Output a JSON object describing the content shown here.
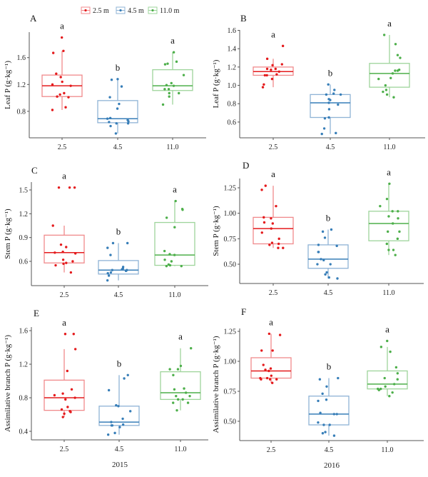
{
  "legend": {
    "items": [
      {
        "label": "2.5 m",
        "color": "#e41a1c"
      },
      {
        "label": "4.5 m",
        "color": "#377eb8"
      },
      {
        "label": "11.0 m",
        "color": "#4daf4a"
      }
    ]
  },
  "years": [
    "2015",
    "2016"
  ],
  "chart_data": [
    {
      "type": "box",
      "panel": "A",
      "ylabel": "Leaf P  (g·kg⁻¹)",
      "categories": [
        "2.5",
        "4.5",
        "11.0"
      ],
      "ylim": [
        0.405,
        1.98
      ],
      "yticks": [
        0.8,
        1.2,
        1.6
      ],
      "tick_format": 1,
      "groups": [
        {
          "letter": "a",
          "whisker": [
            0.82,
            1.7
          ],
          "q1": 1.02,
          "median": 1.18,
          "q3": 1.34,
          "points": [
            1.9,
            1.7,
            1.67,
            1.36,
            1.31,
            1.24,
            1.2,
            1.18,
            1.07,
            1.05,
            1.02,
            1.01,
            0.86,
            0.82
          ]
        },
        {
          "letter": "b",
          "whisker": [
            0.47,
            1.28
          ],
          "q1": 0.63,
          "median": 0.69,
          "q3": 0.96,
          "points": [
            1.28,
            1.27,
            1.17,
            1.01,
            0.91,
            0.84,
            0.7,
            0.69,
            0.67,
            0.65,
            0.64,
            0.62,
            0.62,
            0.58,
            0.47
          ]
        },
        {
          "letter": "a",
          "whisker": [
            0.9,
            1.68
          ],
          "q1": 1.11,
          "median": 1.18,
          "q3": 1.42,
          "points": [
            1.68,
            1.54,
            1.51,
            1.5,
            1.34,
            1.22,
            1.19,
            1.18,
            1.13,
            1.13,
            1.07,
            1.07,
            1.02,
            0.9
          ]
        }
      ]
    },
    {
      "type": "box",
      "panel": "B",
      "ylabel": "Leaf P  (g·kg⁻¹)",
      "categories": [
        "2.5",
        "4.5",
        "11.0"
      ],
      "ylim": [
        0.428,
        1.604
      ],
      "yticks": [
        0.6,
        0.8,
        1.0,
        1.2,
        1.4,
        1.6
      ],
      "tick_format": 1,
      "groups": [
        {
          "letter": "a",
          "whisker": [
            0.98,
            1.29
          ],
          "q1": 1.11,
          "median": 1.15,
          "q3": 1.2,
          "points": [
            1.43,
            1.29,
            1.23,
            1.22,
            1.18,
            1.18,
            1.17,
            1.15,
            1.12,
            1.11,
            1.11,
            1.07,
            1.01,
            0.98
          ]
        },
        {
          "letter": "b",
          "whisker": [
            0.47,
            1.01
          ],
          "q1": 0.65,
          "median": 0.81,
          "q3": 0.9,
          "points": [
            1.01,
            0.95,
            0.91,
            0.9,
            0.9,
            0.85,
            0.84,
            0.81,
            0.79,
            0.74,
            0.65,
            0.64,
            0.53,
            0.48,
            0.47
          ]
        },
        {
          "letter": "a",
          "whisker": [
            0.87,
            1.55
          ],
          "q1": 0.98,
          "median": 1.13,
          "q3": 1.24,
          "points": [
            1.55,
            1.45,
            1.33,
            1.3,
            1.17,
            1.16,
            1.16,
            1.13,
            1.08,
            1.07,
            1.0,
            0.95,
            0.93,
            0.9,
            0.87
          ]
        }
      ]
    },
    {
      "type": "box",
      "panel": "C",
      "ylabel": "Stem P  (g·kg⁻¹)",
      "categories": [
        "2.5",
        "4.5",
        "11.0"
      ],
      "ylim": [
        0.294,
        1.599
      ],
      "yticks": [
        0.6,
        0.9,
        1.2,
        1.5
      ],
      "tick_format": 1,
      "groups": [
        {
          "letter": "a",
          "whisker": [
            0.46,
            1.05
          ],
          "q1": 0.58,
          "median": 0.71,
          "q3": 0.93,
          "points": [
            1.53,
            1.53,
            1.53,
            1.05,
            0.81,
            0.78,
            0.72,
            0.71,
            0.7,
            0.62,
            0.6,
            0.58,
            0.57,
            0.55,
            0.46
          ]
        },
        {
          "letter": "b",
          "whisker": [
            0.36,
            0.83
          ],
          "q1": 0.44,
          "median": 0.49,
          "q3": 0.61,
          "points": [
            0.83,
            0.83,
            0.77,
            0.68,
            0.53,
            0.51,
            0.5,
            0.49,
            0.49,
            0.48,
            0.46,
            0.45,
            0.42,
            0.36
          ]
        },
        {
          "letter": "a",
          "whisker": [
            0.54,
            1.36
          ],
          "q1": 0.55,
          "median": 0.68,
          "q3": 1.09,
          "points": [
            1.36,
            1.26,
            1.25,
            1.15,
            1.03,
            0.73,
            0.69,
            0.68,
            0.62,
            0.6,
            0.56,
            0.55,
            0.54,
            0.54
          ]
        }
      ]
    },
    {
      "type": "box",
      "panel": "D",
      "ylabel": "Stem P  (g·kg⁻¹)",
      "categories": [
        "2.5",
        "4.5",
        "11.0"
      ],
      "ylim": [
        0.311,
        1.341
      ],
      "yticks": [
        0.5,
        0.75,
        1.0,
        1.25
      ],
      "tick_format": 2,
      "groups": [
        {
          "letter": "a",
          "whisker": [
            0.66,
            1.27
          ],
          "q1": 0.7,
          "median": 0.85,
          "q3": 0.96,
          "points": [
            1.27,
            1.23,
            1.07,
            0.96,
            0.95,
            0.91,
            0.9,
            0.85,
            0.81,
            0.75,
            0.71,
            0.7,
            0.69,
            0.66,
            0.66
          ]
        },
        {
          "letter": "b",
          "whisker": [
            0.36,
            0.84
          ],
          "q1": 0.46,
          "median": 0.55,
          "q3": 0.69,
          "points": [
            0.84,
            0.82,
            0.76,
            0.69,
            0.68,
            0.62,
            0.62,
            0.55,
            0.54,
            0.5,
            0.5,
            0.42,
            0.4,
            0.37,
            0.36
          ]
        },
        {
          "letter": "a",
          "whisker": [
            0.59,
            1.29
          ],
          "q1": 0.73,
          "median": 0.9,
          "q3": 1.02,
          "points": [
            1.29,
            1.14,
            1.07,
            1.02,
            1.02,
            0.97,
            0.95,
            0.9,
            0.82,
            0.82,
            0.75,
            0.7,
            0.64,
            0.64,
            0.59
          ]
        }
      ]
    },
    {
      "type": "box",
      "panel": "E",
      "ylabel": "Assimilative branch  P (g·kg⁻¹)",
      "xlabel": "2015",
      "categories": [
        "2.5",
        "4.5",
        "11.0"
      ],
      "ylim": [
        0.298,
        1.643
      ],
      "yticks": [
        0.4,
        0.8,
        1.2,
        1.6
      ],
      "tick_format": 1,
      "groups": [
        {
          "letter": "a",
          "whisker": [
            0.57,
            1.38
          ],
          "q1": 0.65,
          "median": 0.8,
          "q3": 1.01,
          "points": [
            1.56,
            1.56,
            1.38,
            1.12,
            0.9,
            0.85,
            0.83,
            0.8,
            0.78,
            0.69,
            0.66,
            0.64,
            0.63,
            0.61,
            0.57
          ]
        },
        {
          "letter": "b",
          "whisker": [
            0.36,
            1.07
          ],
          "q1": 0.47,
          "median": 0.51,
          "q3": 0.7,
          "points": [
            1.07,
            1.03,
            0.89,
            0.71,
            0.7,
            0.64,
            0.55,
            0.51,
            0.48,
            0.47,
            0.47,
            0.45,
            0.38,
            0.36
          ]
        },
        {
          "letter": "a",
          "whisker": [
            0.65,
            1.39
          ],
          "q1": 0.78,
          "median": 0.86,
          "q3": 1.11,
          "points": [
            1.39,
            1.18,
            1.14,
            1.14,
            1.07,
            0.91,
            0.9,
            0.86,
            0.82,
            0.82,
            0.78,
            0.78,
            0.74,
            0.74,
            0.65
          ]
        }
      ]
    },
    {
      "type": "box",
      "panel": "F",
      "ylabel": "Assimilative branch  P (g·kg⁻¹)",
      "xlabel": "2016",
      "categories": [
        "2.5",
        "4.5",
        "11.0"
      ],
      "ylim": [
        0.339,
        1.274
      ],
      "yticks": [
        0.5,
        0.75,
        1.0,
        1.25
      ],
      "tick_format": 2,
      "groups": [
        {
          "letter": "a",
          "whisker": [
            0.82,
            1.23
          ],
          "q1": 0.86,
          "median": 0.92,
          "q3": 1.03,
          "points": [
            1.23,
            1.22,
            1.09,
            1.09,
            0.97,
            0.94,
            0.93,
            0.92,
            0.88,
            0.86,
            0.86,
            0.85,
            0.85,
            0.85,
            0.82
          ]
        },
        {
          "letter": "b",
          "whisker": [
            0.38,
            0.86
          ],
          "q1": 0.47,
          "median": 0.56,
          "q3": 0.71,
          "points": [
            0.86,
            0.85,
            0.79,
            0.73,
            0.68,
            0.67,
            0.57,
            0.56,
            0.56,
            0.49,
            0.47,
            0.47,
            0.41,
            0.4,
            0.38
          ]
        },
        {
          "letter": "a",
          "whisker": [
            0.71,
            1.12
          ],
          "q1": 0.77,
          "median": 0.81,
          "q3": 0.92,
          "points": [
            1.17,
            1.12,
            1.08,
            0.95,
            0.9,
            0.86,
            0.85,
            0.81,
            0.79,
            0.77,
            0.77,
            0.76,
            0.74,
            0.71
          ]
        }
      ]
    }
  ]
}
